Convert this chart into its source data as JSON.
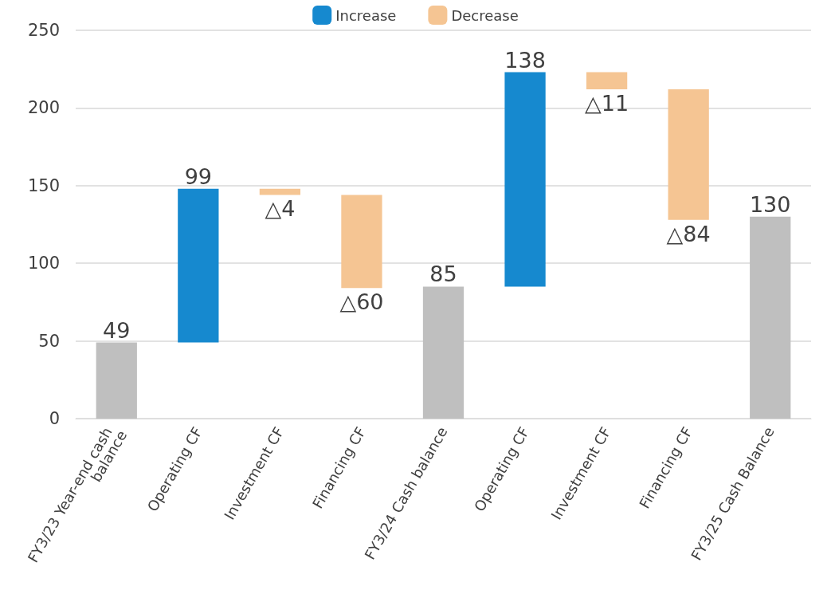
{
  "chart_data": {
    "type": "bar",
    "categories": [
      "FY3/23 Year-end cash balance",
      "Operating CF",
      "Investment CF",
      "Financing CF",
      "FY3/24 Cash balance",
      "Operating CF",
      "Investment CF",
      "Financing CF",
      "FY3/25 Cash Balance"
    ],
    "series": [
      {
        "name": "Increase",
        "color": "#1689cf",
        "base": [
          null,
          49,
          null,
          null,
          null,
          85,
          null,
          null,
          null
        ],
        "values": [
          null,
          99,
          null,
          null,
          null,
          138,
          null,
          null,
          null
        ],
        "value_labels": [
          null,
          "99",
          null,
          null,
          null,
          "138",
          null,
          null,
          null
        ]
      },
      {
        "name": "Decrease",
        "color": "#f5c593",
        "base": [
          null,
          null,
          148,
          144,
          null,
          null,
          223,
          212,
          null
        ],
        "values": [
          null,
          null,
          -4,
          -60,
          null,
          null,
          -11,
          -84,
          null
        ],
        "value_labels": [
          null,
          null,
          "△4",
          "△60",
          null,
          null,
          "△11",
          "△84",
          null
        ]
      },
      {
        "color": "#bfbfbf",
        "base": [
          0,
          null,
          null,
          null,
          0,
          null,
          null,
          null,
          0
        ],
        "values": [
          49,
          null,
          null,
          null,
          85,
          null,
          null,
          null,
          130
        ],
        "value_labels": [
          "49",
          null,
          null,
          null,
          "85",
          null,
          null,
          null,
          "130"
        ]
      }
    ],
    "ylim": [
      0,
      250
    ],
    "yticks": [
      0,
      50,
      100,
      150,
      200,
      250
    ],
    "grid": "y",
    "legend": "top"
  }
}
